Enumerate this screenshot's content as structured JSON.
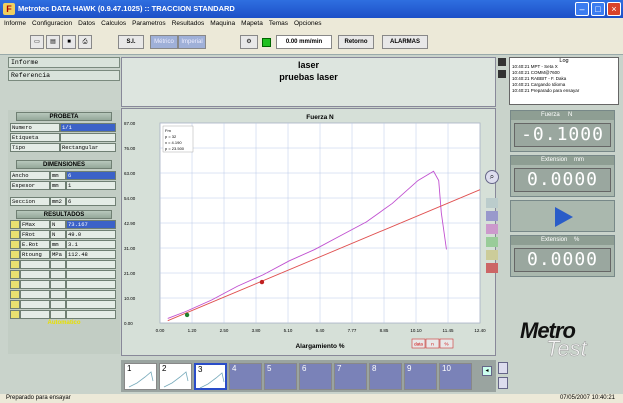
{
  "window": {
    "title": "Metrotec DATA HAWK (0.9.47.1025) :: TRACCION STANDARD"
  },
  "menu": [
    "Informe",
    "Configuracion",
    "Datos",
    "Calculos",
    "Parametros",
    "Resultados",
    "Maquina",
    "Mapeta",
    "Temas",
    "Opciones"
  ],
  "toolbar": {
    "mode": "S.I.",
    "btn_metric": "Métrico",
    "btn_imperial": "Imperial",
    "speed": "0.00 mm/min",
    "retorno": "Retorno",
    "alarmas": "ALARMAS"
  },
  "header": {
    "informe_label": "Informe",
    "referencia_label": "Referencia",
    "informe_value": "laser",
    "referencia_value": "pruebas laser"
  },
  "log": {
    "title": "Log",
    "entries": [
      "10:40:21  MPT - Seta X",
      "10:40:21  COMM@7600",
      "10:40:21  RABBIT - F. Daka",
      "10:40:21  Cargando Idioma",
      "10:40:21  Preparado para ensayar"
    ]
  },
  "probeta": {
    "title": "PROBETA",
    "rows": [
      {
        "k": "Numero",
        "v": "1/1"
      },
      {
        "k": "Etiqueta",
        "v": ""
      },
      {
        "k": "Tipo",
        "v": "Rectangular"
      }
    ]
  },
  "dimensiones": {
    "title": "DIMENSIONES",
    "rows": [
      {
        "k": "Ancho",
        "u": "mm",
        "v": "6"
      },
      {
        "k": "Espesor",
        "u": "mm",
        "v": "1"
      },
      {
        "k": "Seccion",
        "u": "mm2",
        "v": "6"
      }
    ]
  },
  "resultados": {
    "title": "RESULTADOS",
    "rows": [
      {
        "k": "FMax",
        "u": "N",
        "v": "73.167"
      },
      {
        "k": "FRot",
        "u": "N",
        "v": "49.0"
      },
      {
        "k": "E.Rot",
        "u": "mm",
        "v": "3.1"
      },
      {
        "k": "Rtoung",
        "u": "MPa",
        "v": "112.48"
      }
    ],
    "footer": "Automatico"
  },
  "chart_data": {
    "type": "line",
    "title": "Fuerza N",
    "xlabel": "Alargamiento %",
    "ylabel": "",
    "xlim": [
      0,
      12.4
    ],
    "ylim": [
      0,
      87
    ],
    "x_ticks": [
      "0.00",
      "1.20",
      "2.50",
      "3.80",
      "5.10",
      "6.40",
      "7.77",
      "8.85",
      "10.10",
      "11.45",
      "12.40"
    ],
    "y_ticks": [
      "0.00",
      "10.00",
      "21.00",
      "31.00",
      "42.90",
      "54.00",
      "63.00",
      "76.00",
      "87.00"
    ],
    "annotation": [
      "Fm",
      "p = 32",
      "x = 4.190",
      "p = 23.500"
    ],
    "series": [
      {
        "color": "#c050d0",
        "x": [
          0.3,
          1,
          2,
          3,
          4,
          5,
          6,
          7,
          8,
          9,
          9.5,
          10,
          10.3,
          10.6,
          10.8,
          10.9,
          11.1
        ],
        "y": [
          2,
          5,
          10,
          16,
          21,
          27,
          32,
          38,
          44,
          52,
          57,
          62,
          64,
          66,
          62,
          48,
          32
        ]
      },
      {
        "color": "#e05050",
        "x": [
          0.3,
          12.4
        ],
        "y": [
          1,
          58
        ]
      }
    ],
    "markers": [
      {
        "x": 1.05,
        "y": 3.5,
        "color": "#208030"
      },
      {
        "x": 3.95,
        "y": 17.8,
        "color": "#c02020"
      }
    ],
    "buttons": [
      "data",
      "n",
      "%"
    ]
  },
  "digital": {
    "fuerza_label": "Fuerza",
    "fuerza_unit": "N",
    "fuerza_value": "-0.1000",
    "ext_label": "Extension",
    "ext_unit": "mm",
    "ext_value": "0.0000",
    "ext2_label": "Extension",
    "ext2_unit": "%",
    "ext2_value": "0.0000"
  },
  "thumbs": [
    "1",
    "2",
    "3",
    "4",
    "5",
    "6",
    "7",
    "8",
    "9",
    "10"
  ],
  "brand": {
    "line1": "Metro",
    "line2": "Test"
  },
  "status": {
    "left": "Preparado para ensayar",
    "right": "07/05/2007 10:40:21"
  }
}
